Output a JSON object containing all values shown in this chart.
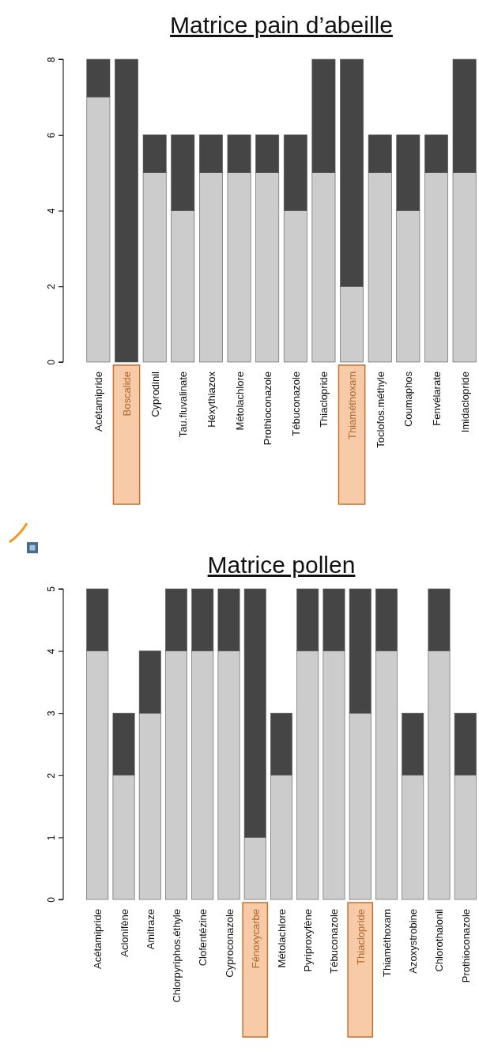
{
  "chart_data": [
    {
      "type": "bar",
      "title": "Matrice pain d’abeille",
      "stacked": true,
      "categories": [
        "Acétamipride",
        "Boscalide",
        "Cyprodinil",
        "Tau.fluvalinate",
        "Héxythiazox",
        "Métolachlore",
        "Prothioconazole",
        "Tébuconazole",
        "Thiaclopride",
        "Thiaméthoxam",
        "Toclofos.méthyle",
        "Coumaphos",
        "Fenvélarate",
        "Imidaclopride"
      ],
      "series": [
        {
          "color": "#cccccc",
          "values": [
            7,
            0,
            5,
            4,
            5,
            5,
            5,
            4,
            5,
            2,
            5,
            4,
            5,
            5
          ]
        },
        {
          "color": "#454545",
          "values": [
            1,
            8,
            1,
            2,
            1,
            1,
            1,
            2,
            3,
            6,
            1,
            2,
            1,
            3
          ]
        }
      ],
      "ylim": [
        0,
        8
      ],
      "yticks": [
        0,
        2,
        4,
        6,
        8
      ]
    },
    {
      "type": "bar",
      "title": "Matrice pollen",
      "stacked": true,
      "categories": [
        "Acétamipride",
        "Aclonifène",
        "Amitraze",
        "Chlorpyriphos.éthyle",
        "Clofentézine",
        "Cyproconazole",
        "Fénoxycarbe",
        "Métolachlore",
        "Pyriproxyfène",
        "Tébuconazole",
        "Thiaclopride",
        "Thiaméthoxam",
        "Azoxystrobine",
        "Chlorothalonil",
        "Prothioconazole"
      ],
      "series": [
        {
          "color": "#cccccc",
          "values": [
            4,
            2,
            3,
            4,
            4,
            4,
            1,
            2,
            4,
            4,
            3,
            4,
            2,
            4,
            2
          ]
        },
        {
          "color": "#454545",
          "values": [
            1,
            1,
            1,
            1,
            1,
            1,
            4,
            1,
            1,
            1,
            2,
            1,
            1,
            1,
            1
          ]
        }
      ],
      "ylim": [
        0,
        5
      ],
      "yticks": [
        0,
        1,
        2,
        3,
        4,
        5
      ]
    }
  ]
}
